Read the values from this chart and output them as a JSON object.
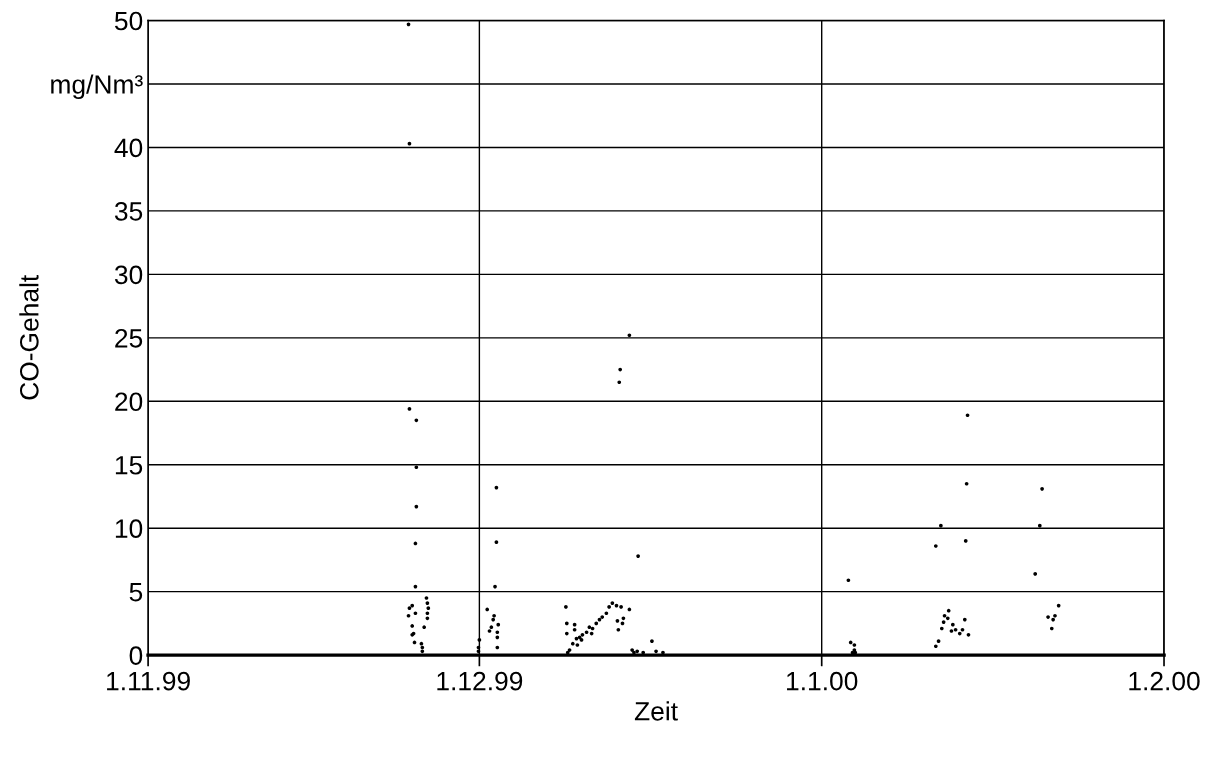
{
  "chart_data": {
    "type": "scatter",
    "xlabel": "Zeit",
    "ylabel": "CO-Gehalt",
    "xlim": [
      "1999-11-01",
      "2000-02-01"
    ],
    "xticks": [
      {
        "value": "1999-11-01",
        "label": "1.11.99"
      },
      {
        "value": "1999-12-01",
        "label": "1.12.99"
      },
      {
        "value": "2000-01-01",
        "label": "1.1.00"
      },
      {
        "value": "2000-02-01",
        "label": "1.2.00"
      }
    ],
    "ylim": [
      0,
      50
    ],
    "yticks": [
      0,
      5,
      10,
      15,
      20,
      25,
      30,
      35,
      40,
      {
        "value": 45,
        "label": "mg/Nm³"
      },
      50
    ],
    "grid": true,
    "marker": "circle",
    "series": [
      {
        "color": "#000000",
        "x": [
          "1999-11-24T14:00",
          "1999-11-24T16:00",
          "1999-11-24T16:00",
          "1999-11-25T07:00",
          "1999-11-25T07:00",
          "1999-11-25T07:00",
          "1999-11-25T05:00",
          "1999-11-25T05:00",
          "1999-11-24T16:00",
          "1999-11-24T22:00",
          "1999-11-24T14:00",
          "1999-11-25T05:00",
          "1999-11-24T22:00",
          "1999-11-25T01:00",
          "1999-11-24T22:00",
          "1999-11-25T03:00",
          "1999-11-25T18:00",
          "1999-11-25T20:00",
          "1999-11-25T20:00",
          "1999-11-26T05:00",
          "1999-11-26T07:00",
          "1999-11-26T09:00",
          "1999-11-26T07:00",
          "1999-11-26T07:00",
          "1999-11-26T00:00",
          "1999-12-01T00:00",
          "1999-11-30T22:00",
          "1999-11-30T22:00",
          "1999-12-02T13:00",
          "1999-12-02T13:00",
          "1999-12-02T10:00",
          "1999-12-01T17:00",
          "1999-12-02T08:00",
          "1999-12-02T06:00",
          "1999-12-02T02:00",
          "1999-12-02T17:00",
          "1999-12-01T22:00",
          "1999-12-02T15:00",
          "1999-12-02T15:00",
          "1999-12-02T15:00",
          "1999-12-14T14:00",
          "1999-12-13T18:00",
          "1999-12-13T16:00",
          "1999-12-15T09:00",
          "1999-12-08T20:00",
          "1999-12-08T22:00",
          "1999-12-09T15:00",
          "1999-12-08T22:00",
          "1999-12-09T15:00",
          "1999-12-09T00:00",
          "1999-12-09T04:00",
          "1999-12-09T11:00",
          "1999-12-09T19:00",
          "1999-12-10T02:00",
          "1999-12-10T08:00",
          "1999-12-10T17:00",
          "1999-12-10T23:00",
          "1999-12-11T06:00",
          "1999-12-11T14:00",
          "1999-12-11T21:00",
          "1999-12-12T03:00",
          "1999-12-12T12:00",
          "1999-12-12T18:00",
          "1999-12-13T01:00",
          "1999-12-13T10:00",
          "1999-12-13T20:00",
          "1999-12-14T14:00",
          "1999-12-13T12:00",
          "1999-12-14T01:00",
          "1999-12-13T23:00",
          "1999-12-13T14:00",
          "1999-12-09T21:00",
          "1999-12-10T06:00",
          "1999-12-11T04:00",
          "1999-12-14T20:00",
          "1999-12-15T07:00",
          "1999-12-15T20:00",
          "1999-12-16T15:00",
          "1999-12-17T00:00",
          "1999-12-17T15:00",
          "1999-12-15T00:00",
          "2000-01-03T10:00",
          "2000-01-03T15:00",
          "2000-01-03T23:00",
          "2000-01-03T23:00",
          "2000-01-04T01:00",
          "2000-01-03T19:00",
          "2000-01-14T05:00",
          "2000-01-14T03:00",
          "2000-01-20T23:00",
          "2000-01-11T19:00",
          "2000-01-20T18:00",
          "2000-01-11T08:00",
          "2000-01-14T01:00",
          "2000-01-20T08:00",
          "2000-01-22T11:00",
          "2000-01-21T12:00",
          "2000-01-22T03:00",
          "2000-01-21T23:00",
          "2000-01-21T20:00",
          "2000-01-12T12:00",
          "2000-01-12T03:00",
          "2000-01-12T10:00",
          "2000-01-12T01:00",
          "2000-01-11T21:00",
          "2000-01-12T21:00",
          "2000-01-12T18:00",
          "2000-01-13T03:00",
          "2000-01-13T12:00",
          "2000-01-13T18:00",
          "2000-01-13T23:00",
          "2000-01-14T07:00",
          "2000-01-11T14:00",
          "2000-01-11T08:00"
        ],
        "values": [
          49.7,
          40.3,
          19.4,
          18.5,
          14.8,
          11.7,
          8.8,
          5.4,
          3.7,
          3.9,
          3.1,
          3.3,
          2.3,
          1.7,
          1.6,
          1.0,
          0.9,
          0.6,
          0.3,
          4.5,
          4.1,
          3.7,
          3.3,
          2.9,
          2.2,
          1.2,
          0.6,
          0.3,
          13.2,
          8.9,
          5.4,
          3.6,
          3.1,
          2.8,
          2.2,
          2.4,
          1.9,
          1.8,
          1.4,
          0.6,
          25.2,
          22.5,
          21.5,
          7.8,
          3.8,
          2.5,
          2.4,
          1.7,
          2.0,
          0.2,
          0.4,
          0.9,
          1.3,
          1.4,
          1.6,
          1.8,
          2.2,
          2.1,
          2.5,
          2.8,
          3.0,
          3.3,
          3.8,
          4.1,
          3.9,
          3.8,
          3.6,
          2.7,
          2.9,
          2.5,
          2.0,
          0.8,
          1.2,
          1.7,
          0.4,
          0.3,
          0.2,
          1.1,
          0.3,
          0.2,
          0.2,
          5.9,
          1.0,
          0.8,
          0.4,
          0.2,
          0.2,
          18.9,
          13.5,
          13.1,
          10.2,
          10.2,
          8.6,
          9.0,
          6.4,
          3.9,
          3.0,
          3.1,
          2.8,
          2.1,
          3.5,
          3.1,
          2.9,
          2.6,
          2.1,
          2.4,
          1.9,
          2.0,
          1.7,
          2.0,
          2.8,
          1.6,
          1.1,
          0.7
        ]
      }
    ]
  }
}
